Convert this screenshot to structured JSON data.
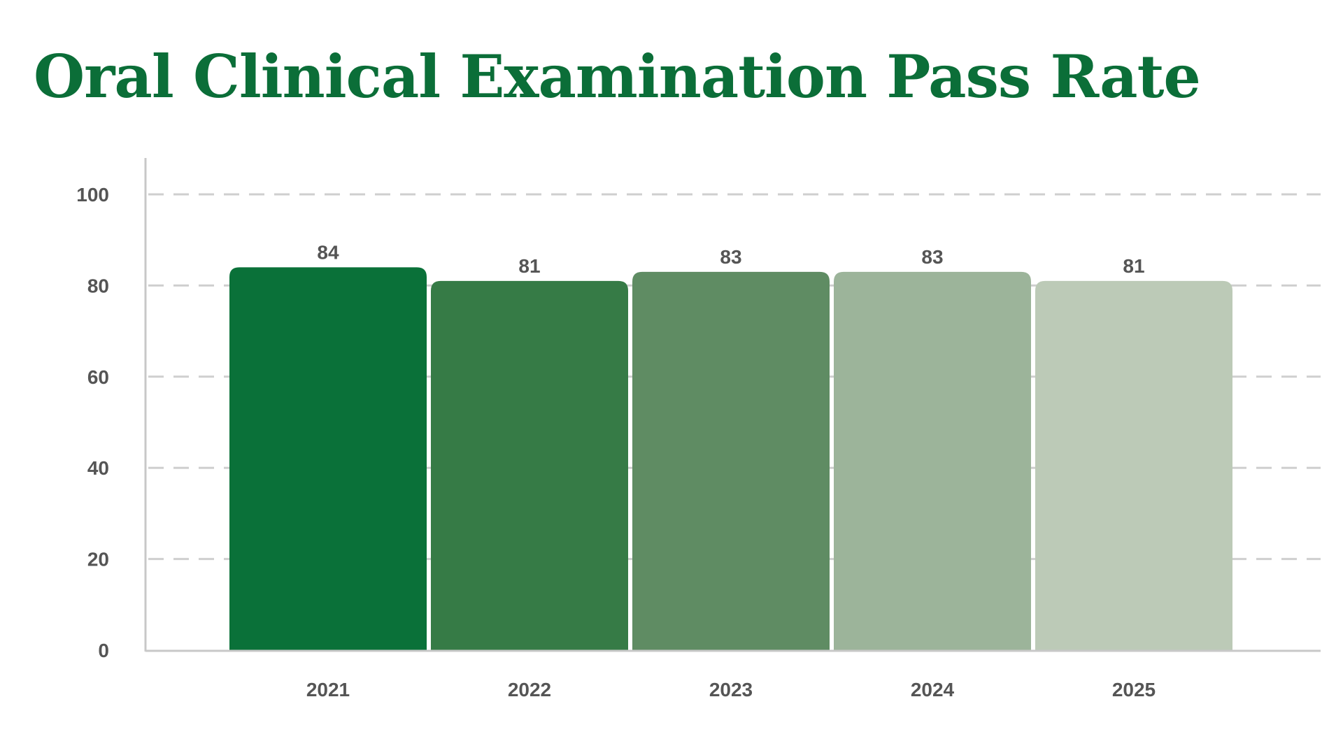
{
  "title": "Oral Clinical Examination Pass Rate",
  "colors": {
    "title": "#0b6e38",
    "axis": "#c8c8c8",
    "gridline": "#cfcfcf",
    "text": "#555555"
  },
  "chart_data": {
    "type": "bar",
    "title": "Oral Clinical Examination Pass Rate",
    "xlabel": "",
    "ylabel": "",
    "categories": [
      "2021",
      "2022",
      "2023",
      "2024",
      "2025"
    ],
    "values": [
      84,
      81,
      83,
      83,
      81
    ],
    "data_labels": [
      "84",
      "81",
      "83",
      "83",
      "81"
    ],
    "bar_colors": [
      "#0a7139",
      "#367b46",
      "#5f8c63",
      "#9cb49a",
      "#bccab7"
    ],
    "ylim": [
      0,
      100
    ],
    "yticks": [
      0,
      20,
      40,
      60,
      80,
      100
    ],
    "ytick_labels": [
      "0",
      "20",
      "40",
      "60",
      "80",
      "100"
    ],
    "grid": true,
    "grid_style": "dashed-horizontal",
    "legend": "none"
  }
}
